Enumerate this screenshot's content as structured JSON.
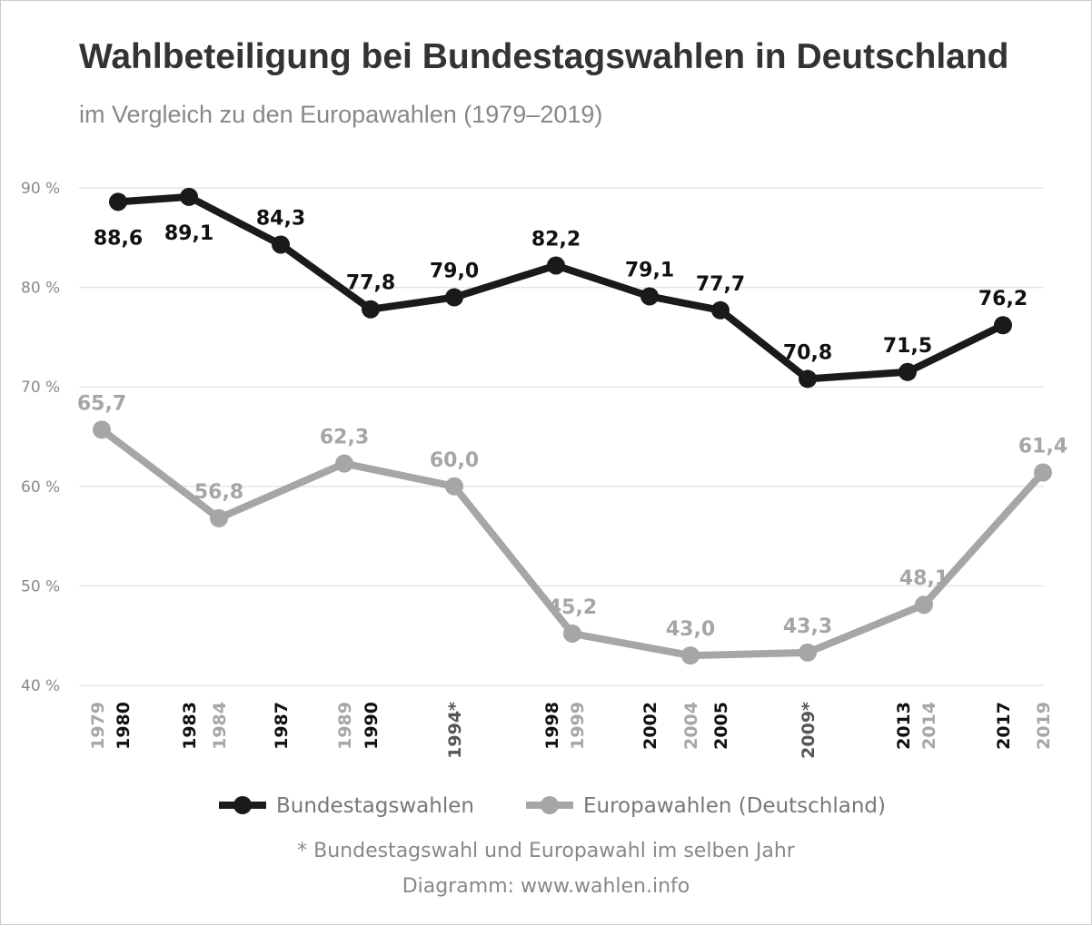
{
  "title": "Wahlbeteiligung bei Bundestagswahlen in Deutschland",
  "subtitle": "im Vergleich zu den Europawahlen (1979–2019)",
  "footnote": "* Bundestagswahl und Europawahl im selben Jahr",
  "source": "Diagramm: www.wahlen.info",
  "chart_data": {
    "type": "line",
    "title": "Wahlbeteiligung bei Bundestagswahlen in Deutschland",
    "ylim": [
      40,
      90
    ],
    "yticks": [
      "40 %",
      "50 %",
      "60 %",
      "70 %",
      "80 %",
      "90 %"
    ],
    "grid": true,
    "legend": "bottom",
    "x_tick_labels": [
      {
        "label": "1979",
        "type": "eu"
      },
      {
        "label": "1980",
        "type": "btw"
      },
      {
        "label": "1983",
        "type": "btw"
      },
      {
        "label": "1984",
        "type": "eu"
      },
      {
        "label": "1987",
        "type": "btw"
      },
      {
        "label": "1989",
        "type": "eu"
      },
      {
        "label": "1990",
        "type": "btw"
      },
      {
        "label": "1994*",
        "type": "both"
      },
      {
        "label": "1998",
        "type": "btw"
      },
      {
        "label": "1999",
        "type": "eu"
      },
      {
        "label": "2002",
        "type": "btw"
      },
      {
        "label": "2004",
        "type": "eu"
      },
      {
        "label": "2005",
        "type": "btw"
      },
      {
        "label": "2009*",
        "type": "both"
      },
      {
        "label": "2013",
        "type": "btw"
      },
      {
        "label": "2014",
        "type": "eu"
      },
      {
        "label": "2017",
        "type": "btw"
      },
      {
        "label": "2019",
        "type": "eu"
      }
    ],
    "series": [
      {
        "name": "Bundestagswahlen",
        "color": "#1a1a1a",
        "x": [
          1980,
          1983,
          1987,
          1990,
          1994,
          1998,
          2002,
          2005,
          2009,
          2013,
          2017
        ],
        "values": [
          88.6,
          89.1,
          84.3,
          77.8,
          79.0,
          82.2,
          79.1,
          77.7,
          70.8,
          71.5,
          76.2
        ],
        "labels": [
          "88,6",
          "89,1",
          "84,3",
          "77,8",
          "79,0",
          "82,2",
          "79,1",
          "77,7",
          "70,8",
          "71,5",
          "76,2"
        ]
      },
      {
        "name": "Europawahlen (Deutschland)",
        "color": "#a6a6a6",
        "x": [
          1979,
          1984,
          1989,
          1994,
          1999,
          2004,
          2009,
          2014,
          2019
        ],
        "values": [
          65.7,
          56.8,
          62.3,
          60.0,
          45.2,
          43.0,
          43.3,
          48.1,
          61.4
        ],
        "labels": [
          "65,7",
          "56,8",
          "62,3",
          "60,0",
          "45,2",
          "43,0",
          "43,3",
          "48,1",
          "61,4"
        ]
      }
    ],
    "tick_colors": {
      "btw": "#111111",
      "eu": "#a6a6a6",
      "both": "#555555"
    }
  }
}
